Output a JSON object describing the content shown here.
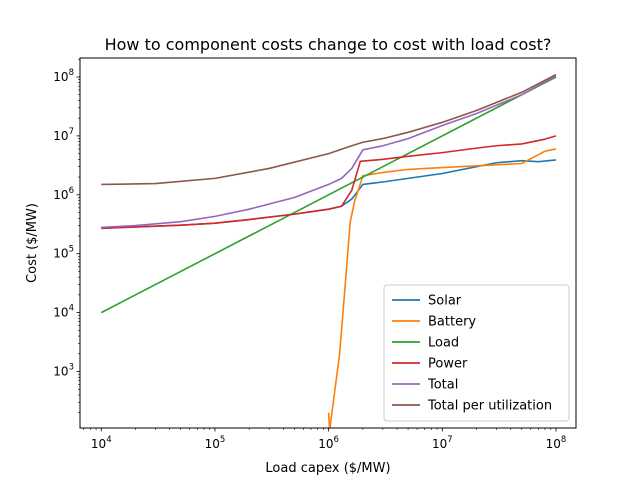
{
  "chart_data": {
    "type": "line",
    "title": "How to component costs change to cost with load cost?",
    "xlabel": "Load capex ($/MW)",
    "ylabel": "Cost ($/MW)",
    "xscale": "log",
    "yscale": "log",
    "xlim": [
      6500,
      150000000
    ],
    "ylim": [
      110,
      210000000
    ],
    "grid": false,
    "legend_position": "lower-right",
    "x_ticks": [
      {
        "value": 10000,
        "base": "10",
        "exp": "4"
      },
      {
        "value": 100000,
        "base": "10",
        "exp": "5"
      },
      {
        "value": 1000000,
        "base": "10",
        "exp": "6"
      },
      {
        "value": 10000000,
        "base": "10",
        "exp": "7"
      },
      {
        "value": 100000000,
        "base": "10",
        "exp": "8"
      }
    ],
    "y_ticks": [
      {
        "value": 1000,
        "base": "10",
        "exp": "3"
      },
      {
        "value": 10000,
        "base": "10",
        "exp": "4"
      },
      {
        "value": 100000,
        "base": "10",
        "exp": "5"
      },
      {
        "value": 1000000,
        "base": "10",
        "exp": "6"
      },
      {
        "value": 10000000,
        "base": "10",
        "exp": "7"
      },
      {
        "value": 100000000,
        "base": "10",
        "exp": "8"
      }
    ],
    "series": [
      {
        "name": "Solar",
        "color": "#1f77b4",
        "points": [
          [
            10000,
            270000
          ],
          [
            20000,
            285000
          ],
          [
            50000,
            305000
          ],
          [
            100000,
            330000
          ],
          [
            200000,
            380000
          ],
          [
            500000,
            470000
          ],
          [
            1000000,
            570000
          ],
          [
            1300000,
            640000
          ],
          [
            1600000,
            850000
          ],
          [
            2000000,
            1500000
          ],
          [
            3000000,
            1650000
          ],
          [
            5000000,
            1900000
          ],
          [
            10000000,
            2300000
          ],
          [
            20000000,
            3000000
          ],
          [
            30000000,
            3500000
          ],
          [
            50000000,
            3800000
          ],
          [
            70000000,
            3650000
          ],
          [
            100000000,
            3900000
          ]
        ]
      },
      {
        "name": "Battery",
        "color": "#ff7f0e",
        "points": [
          [
            1000000,
            200
          ],
          [
            1020000,
            100
          ],
          [
            1250000,
            2000
          ],
          [
            1400000,
            30000
          ],
          [
            1550000,
            350000
          ],
          [
            1700000,
            800000
          ],
          [
            1850000,
            1300000
          ],
          [
            2000000,
            2100000
          ],
          [
            3000000,
            2400000
          ],
          [
            5000000,
            2700000
          ],
          [
            10000000,
            2900000
          ],
          [
            20000000,
            3100000
          ],
          [
            50000000,
            3400000
          ],
          [
            80000000,
            5500000
          ],
          [
            100000000,
            6000000
          ]
        ]
      },
      {
        "name": "Load",
        "color": "#2ca02c",
        "points": [
          [
            10000,
            10000
          ],
          [
            100000000,
            100000000
          ]
        ]
      },
      {
        "name": "Power",
        "color": "#d62728",
        "points": [
          [
            10000,
            270000
          ],
          [
            20000,
            285000
          ],
          [
            50000,
            305000
          ],
          [
            100000,
            330000
          ],
          [
            200000,
            380000
          ],
          [
            500000,
            470000
          ],
          [
            1000000,
            570000
          ],
          [
            1300000,
            640000
          ],
          [
            1600000,
            1200000
          ],
          [
            1900000,
            3700000
          ],
          [
            3000000,
            4000000
          ],
          [
            5000000,
            4500000
          ],
          [
            10000000,
            5200000
          ],
          [
            20000000,
            6200000
          ],
          [
            30000000,
            6800000
          ],
          [
            50000000,
            7300000
          ],
          [
            80000000,
            8800000
          ],
          [
            100000000,
            10000000
          ]
        ]
      },
      {
        "name": "Total",
        "color": "#9467bd",
        "points": [
          [
            10000,
            280000
          ],
          [
            20000,
            300000
          ],
          [
            50000,
            350000
          ],
          [
            100000,
            430000
          ],
          [
            200000,
            570000
          ],
          [
            500000,
            900000
          ],
          [
            1000000,
            1500000
          ],
          [
            1300000,
            1900000
          ],
          [
            1600000,
            2800000
          ],
          [
            2000000,
            5800000
          ],
          [
            3000000,
            6800000
          ],
          [
            5000000,
            9000000
          ],
          [
            10000000,
            15000000
          ],
          [
            20000000,
            24000000
          ],
          [
            50000000,
            50000000
          ],
          [
            100000000,
            105000000
          ]
        ]
      },
      {
        "name": "Total per utilization",
        "color": "#8c564b",
        "points": [
          [
            10000,
            1500000
          ],
          [
            30000,
            1550000
          ],
          [
            100000,
            1900000
          ],
          [
            300000,
            2800000
          ],
          [
            1000000,
            5000000
          ],
          [
            1600000,
            6800000
          ],
          [
            2000000,
            7800000
          ],
          [
            3000000,
            9000000
          ],
          [
            5000000,
            11500000
          ],
          [
            10000000,
            17000000
          ],
          [
            20000000,
            27000000
          ],
          [
            50000000,
            55000000
          ],
          [
            100000000,
            110000000
          ]
        ]
      }
    ]
  }
}
